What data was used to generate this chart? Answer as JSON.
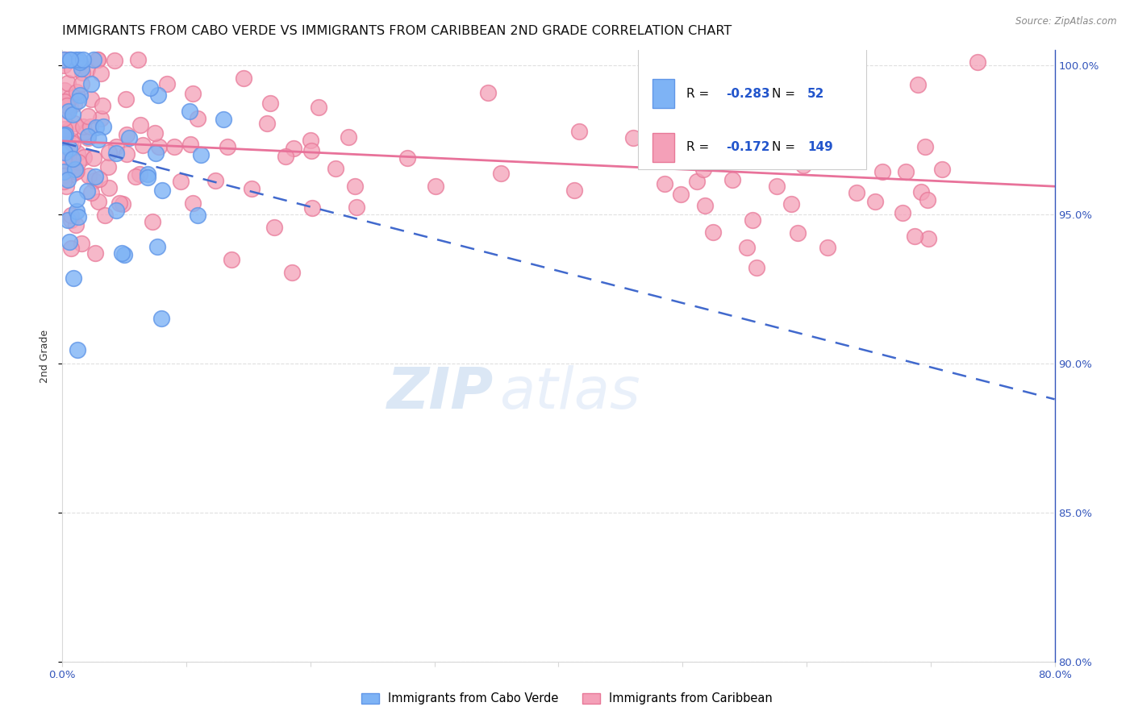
{
  "title": "IMMIGRANTS FROM CABO VERDE VS IMMIGRANTS FROM CARIBBEAN 2ND GRADE CORRELATION CHART",
  "source": "Source: ZipAtlas.com",
  "ylabel": "2nd Grade",
  "x_min": 0.0,
  "x_max": 0.8,
  "y_min": 0.8,
  "y_max": 1.005,
  "cabo_verde_R": -0.283,
  "cabo_verde_N": 52,
  "caribbean_R": -0.172,
  "caribbean_N": 149,
  "cabo_verde_color": "#7EB3F5",
  "caribbean_color": "#F4A0B8",
  "cabo_verde_edge_color": "#6096E8",
  "caribbean_edge_color": "#E87898",
  "cabo_verde_line_color": "#4169CD",
  "caribbean_line_color": "#E8729A",
  "watermark_zip": "ZIP",
  "watermark_atlas": "atlas",
  "legend_label_cabo": "Immigrants from Cabo Verde",
  "legend_label_caribbean": "Immigrants from Caribbean",
  "background_color": "#ffffff",
  "grid_color": "#d8d8d8",
  "title_fontsize": 11.5,
  "axis_label_fontsize": 9,
  "tick_fontsize": 9.5,
  "legend_R_color": "#1a1a1a",
  "legend_val_color": "#2255CC",
  "legend_N_color": "#1a1a1a",
  "legend_N_val_color": "#2255CC"
}
